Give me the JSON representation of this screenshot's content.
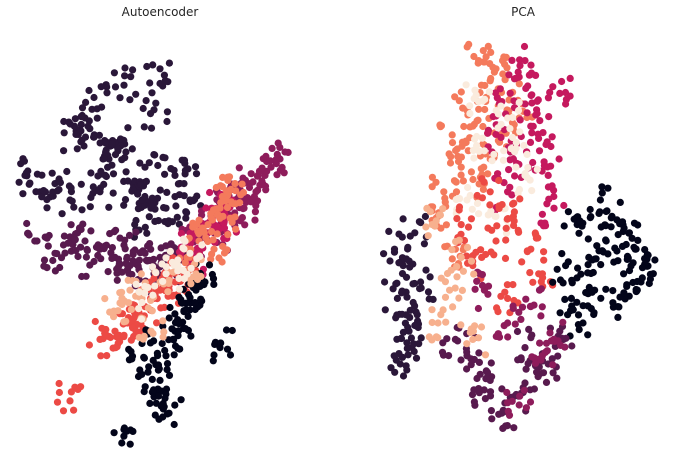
{
  "chart_data": [
    {
      "type": "scatter",
      "title": "Autoencoder",
      "axes_visible": false,
      "grid": false,
      "legend": "none",
      "xlim": [
        0,
        100
      ],
      "ylim": [
        0,
        100
      ],
      "palette": [
        "#03051A",
        "#2A1739",
        "#581A4E",
        "#8E1C5B",
        "#C5195E",
        "#EC4A45",
        "#F47A5C",
        "#F7B08E",
        "#FAEBDD"
      ],
      "series": [
        {
          "color": "#2A1739",
          "x": [
            41,
            36,
            25,
            30,
            45,
            52,
            38,
            60,
            33,
            22,
            48,
            55,
            42,
            28,
            50,
            20,
            10,
            5,
            15,
            47,
            35,
            26,
            58,
            44,
            31
          ],
          "y": [
            64,
            72,
            80,
            62,
            68,
            58,
            88,
            60,
            70,
            76,
            82,
            66,
            55,
            85,
            92,
            60,
            62,
            66,
            64,
            58,
            74,
            78,
            64,
            60,
            70
          ]
        },
        {
          "color": "#581A4E",
          "x": [
            40,
            35,
            30,
            25,
            48,
            52,
            56,
            45,
            38,
            28,
            20,
            15,
            9,
            43,
            50
          ],
          "y": [
            44,
            46,
            48,
            50,
            42,
            44,
            45,
            47,
            49,
            45,
            51,
            47,
            50,
            43,
            46
          ]
        },
        {
          "color": "#8E1C5B",
          "x": [
            75,
            80,
            85,
            90,
            72,
            78,
            68,
            82,
            60,
            87,
            65,
            73
          ],
          "y": [
            60,
            64,
            66,
            70,
            56,
            58,
            52,
            62,
            50,
            68,
            54,
            61
          ]
        },
        {
          "color": "#C5195E",
          "x": [
            63,
            68,
            72,
            58,
            66,
            70,
            61
          ],
          "y": [
            50,
            54,
            56,
            48,
            52,
            58,
            45
          ]
        },
        {
          "color": "#F47A5C",
          "x": [
            66,
            70,
            73,
            63,
            59,
            68,
            75,
            71
          ],
          "y": [
            54,
            58,
            62,
            50,
            46,
            48,
            64,
            56
          ]
        },
        {
          "color": "#EC4A45",
          "x": [
            50,
            45,
            40,
            35,
            55,
            58,
            42,
            48,
            38,
            30,
            20,
            53
          ],
          "y": [
            38,
            34,
            30,
            28,
            40,
            42,
            32,
            36,
            27,
            26,
            11,
            39
          ]
        },
        {
          "color": "#03051A",
          "x": [
            58,
            55,
            52,
            50,
            62,
            65,
            60,
            48,
            46,
            44,
            56,
            53,
            38,
            70
          ],
          "y": [
            33,
            28,
            22,
            16,
            38,
            40,
            35,
            12,
            18,
            25,
            30,
            8,
            4,
            24
          ]
        },
        {
          "color": "#F7B08E",
          "x": [
            50,
            44,
            40,
            36,
            62,
            47
          ],
          "y": [
            40,
            36,
            38,
            33,
            42,
            28
          ]
        },
        {
          "color": "#FAEBDD",
          "x": [
            56,
            60,
            52,
            44
          ],
          "y": [
            44,
            47,
            42,
            35
          ]
        }
      ]
    },
    {
      "type": "scatter",
      "title": "PCA",
      "axes_visible": false,
      "grid": false,
      "legend": "none",
      "xlim": [
        0,
        100
      ],
      "ylim": [
        0,
        100
      ],
      "series": [
        {
          "color": "#F47A5C",
          "x": [
            30,
            25,
            35,
            28,
            40,
            22,
            32,
            38,
            45,
            20,
            26,
            42,
            34,
            48,
            36
          ],
          "y": [
            82,
            74,
            88,
            68,
            92,
            62,
            78,
            70,
            86,
            56,
            48,
            76,
            94,
            80,
            64
          ]
        },
        {
          "color": "#C5195E",
          "x": [
            42,
            48,
            52,
            55,
            46,
            58,
            50,
            44,
            60,
            54,
            40,
            62
          ],
          "y": [
            84,
            90,
            78,
            72,
            70,
            66,
            94,
            62,
            58,
            82,
            76,
            86
          ]
        },
        {
          "color": "#FAEBDD",
          "x": [
            36,
            44,
            30,
            50,
            40,
            34,
            47
          ],
          "y": [
            72,
            80,
            60,
            66,
            56,
            84,
            74
          ]
        },
        {
          "color": "#EC4A45",
          "x": [
            40,
            46,
            32,
            52,
            38,
            28,
            56,
            44
          ],
          "y": [
            50,
            56,
            44,
            48,
            62,
            54,
            42,
            36
          ]
        },
        {
          "color": "#03051A",
          "x": [
            72,
            78,
            84,
            68,
            88,
            74,
            80,
            64,
            90,
            70,
            82,
            76,
            66,
            86,
            92
          ],
          "y": [
            46,
            50,
            42,
            54,
            48,
            38,
            56,
            44,
            40,
            30,
            34,
            60,
            36,
            52,
            46
          ]
        },
        {
          "color": "#2A1739",
          "x": [
            8,
            6,
            10,
            12,
            7,
            9,
            14,
            11,
            5
          ],
          "y": [
            44,
            36,
            28,
            52,
            20,
            32,
            40,
            24,
            48
          ]
        },
        {
          "color": "#581A4E",
          "x": [
            30,
            38,
            46,
            54,
            26,
            42,
            50,
            34,
            58,
            62
          ],
          "y": [
            22,
            16,
            12,
            18,
            26,
            8,
            24,
            14,
            20,
            28
          ]
        },
        {
          "color": "#8E1C5B",
          "x": [
            44,
            52,
            36,
            60,
            48,
            56
          ],
          "y": [
            30,
            34,
            38,
            26,
            10,
            22
          ]
        },
        {
          "color": "#F7B08E",
          "x": [
            24,
            28,
            20,
            32,
            18
          ],
          "y": [
            38,
            46,
            30,
            26,
            54
          ]
        }
      ]
    }
  ]
}
